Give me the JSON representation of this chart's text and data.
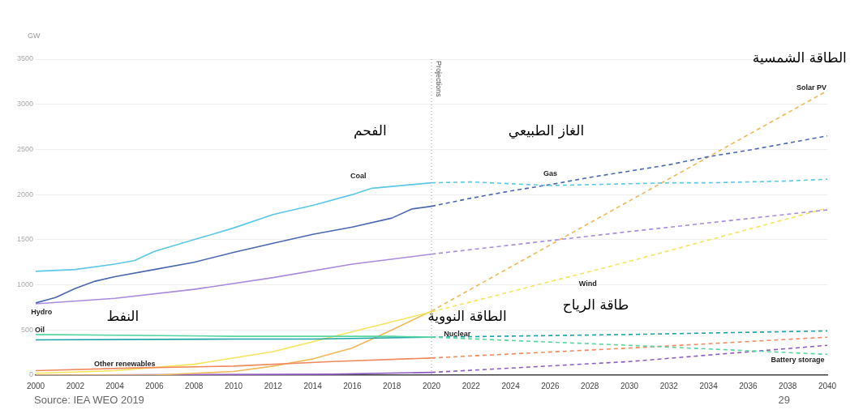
{
  "chart_data": {
    "type": "line",
    "ylabel": "GW",
    "xlim": [
      2000,
      2040
    ],
    "xticks": [
      2000,
      2002,
      2004,
      2006,
      2008,
      2010,
      2012,
      2014,
      2016,
      2018,
      2020,
      2022,
      2024,
      2026,
      2028,
      2030,
      2032,
      2034,
      2036,
      2038,
      2040
    ],
    "ylim": [
      0,
      3500
    ],
    "yticks": [
      0,
      500,
      1000,
      1500,
      2000,
      2500,
      3000,
      3500
    ],
    "grid": "y",
    "legend": false,
    "marker": "none",
    "series": [
      {
        "color": "#5bc8e8",
        "line_style": "solid",
        "x": [
          2000,
          2002,
          2004,
          2005,
          2006,
          2008,
          2010,
          2012,
          2014,
          2016,
          2017,
          2018,
          2020
        ],
        "values": [
          1150,
          1170,
          1230,
          1270,
          1370,
          1500,
          1630,
          1780,
          1880,
          2000,
          2070,
          2090,
          2130
        ]
      },
      {
        "color": "#5bc8e8",
        "line_style": "dashed",
        "x": [
          2020,
          2022,
          2024,
          2026,
          2028,
          2030,
          2032,
          2034,
          2036,
          2038,
          2040
        ],
        "values": [
          2130,
          2140,
          2120,
          2100,
          2110,
          2120,
          2130,
          2130,
          2140,
          2150,
          2170
        ]
      },
      {
        "color": "#4a67b0",
        "line_style": "solid",
        "x": [
          2000,
          2001,
          2002,
          2003,
          2004,
          2006,
          2008,
          2010,
          2012,
          2014,
          2016,
          2018,
          2019,
          2020
        ],
        "values": [
          800,
          860,
          960,
          1040,
          1090,
          1170,
          1250,
          1360,
          1460,
          1560,
          1640,
          1740,
          1840,
          1870
        ]
      },
      {
        "color": "#4a67b0",
        "line_style": "dashed",
        "x": [
          2020,
          2022,
          2024,
          2026,
          2028,
          2030,
          2032,
          2034,
          2036,
          2038,
          2040
        ],
        "values": [
          1870,
          1960,
          2040,
          2110,
          2190,
          2260,
          2330,
          2420,
          2490,
          2570,
          2650
        ]
      },
      {
        "color": "#a98be0",
        "line_style": "solid",
        "x": [
          2000,
          2004,
          2008,
          2012,
          2016,
          2020
        ],
        "values": [
          790,
          850,
          950,
          1080,
          1230,
          1340
        ]
      },
      {
        "color": "#a98be0",
        "line_style": "dashed",
        "x": [
          2020,
          2030,
          2040
        ],
        "values": [
          1340,
          1590,
          1830
        ]
      },
      {
        "color": "#57d6a0",
        "line_style": "solid",
        "x": [
          2000,
          2010,
          2018,
          2020
        ],
        "values": [
          450,
          430,
          430,
          420
        ]
      },
      {
        "color": "#57d6a0",
        "line_style": "dashed",
        "x": [
          2020,
          2030,
          2040
        ],
        "values": [
          420,
          330,
          230
        ]
      },
      {
        "color": "#1ba3a8",
        "line_style": "solid",
        "x": [
          2000,
          2010,
          2014,
          2020
        ],
        "values": [
          390,
          400,
          400,
          420
        ]
      },
      {
        "color": "#1ba3a8",
        "line_style": "dashed",
        "x": [
          2020,
          2030,
          2040
        ],
        "values": [
          420,
          450,
          490
        ]
      },
      {
        "color": "#f08a5d",
        "line_style": "solid",
        "x": [
          2000,
          2005,
          2010,
          2015,
          2020
        ],
        "values": [
          50,
          80,
          100,
          150,
          190
        ]
      },
      {
        "color": "#f08a5d",
        "line_style": "dashed",
        "x": [
          2020,
          2030,
          2040
        ],
        "values": [
          190,
          300,
          420
        ]
      },
      {
        "color": "#f5e55a",
        "line_style": "solid",
        "x": [
          2000,
          2004,
          2008,
          2012,
          2016,
          2020
        ],
        "values": [
          20,
          50,
          120,
          260,
          480,
          700
        ]
      },
      {
        "color": "#f5e55a",
        "line_style": "dashed",
        "x": [
          2020,
          2030,
          2040
        ],
        "values": [
          700,
          1260,
          1850
        ]
      },
      {
        "color": "#f0b858",
        "line_style": "solid",
        "x": [
          2000,
          2006,
          2010,
          2012,
          2014,
          2016,
          2018,
          2020
        ],
        "values": [
          0,
          0,
          40,
          100,
          180,
          300,
          500,
          710
        ]
      },
      {
        "color": "#f0b858",
        "line_style": "dashed",
        "x": [
          2020,
          2030,
          2040
        ],
        "values": [
          710,
          1930,
          3150
        ]
      },
      {
        "color": "#8e5cc0",
        "line_style": "solid",
        "x": [
          2000,
          2015,
          2020
        ],
        "values": [
          0,
          10,
          30
        ]
      },
      {
        "color": "#8e5cc0",
        "line_style": "dashed",
        "x": [
          2020,
          2030,
          2040
        ],
        "values": [
          30,
          150,
          330
        ]
      }
    ],
    "ref_lines": [
      {
        "axis": "x",
        "value": 2020,
        "label": "Projections",
        "line_style": "dotted",
        "color": "#999999"
      }
    ],
    "annotations": [
      "Coal",
      "Gas",
      "Solar PV",
      "Hydro",
      "Oil",
      "Nuclear",
      "Wind",
      "Other renewables",
      "Battery storage",
      "الفحم",
      "الغاز الطبيعي",
      "الطاقة الشمسية",
      "النفط",
      "الطاقة النووية",
      "طاقة الرياح",
      "Source: IEA WEO 2019",
      "29"
    ]
  }
}
